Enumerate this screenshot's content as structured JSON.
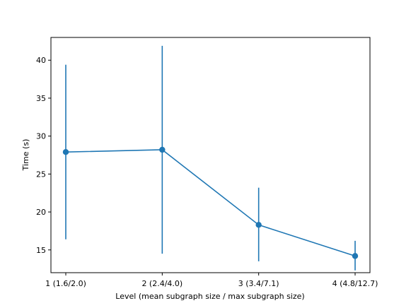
{
  "chart_data": {
    "type": "line",
    "xlabel": "Level (mean subgraph size / max subgraph size)",
    "ylabel": "Time (s)",
    "categories": [
      "1 (1.6/2.0)",
      "2 (2.4/4.0)",
      "3 (3.4/7.1)",
      "4 (4.8/12.7)"
    ],
    "series": [
      {
        "values": [
          27.9,
          28.2,
          18.3,
          14.2
        ],
        "error_low": [
          16.4,
          14.5,
          13.5,
          12.3
        ],
        "error_high": [
          39.4,
          41.9,
          23.2,
          16.2
        ]
      }
    ],
    "yticks": [
      15,
      20,
      25,
      30,
      35,
      40
    ],
    "ylim": [
      12.0,
      43.0
    ],
    "grid": false,
    "color": "#1f77b4"
  }
}
